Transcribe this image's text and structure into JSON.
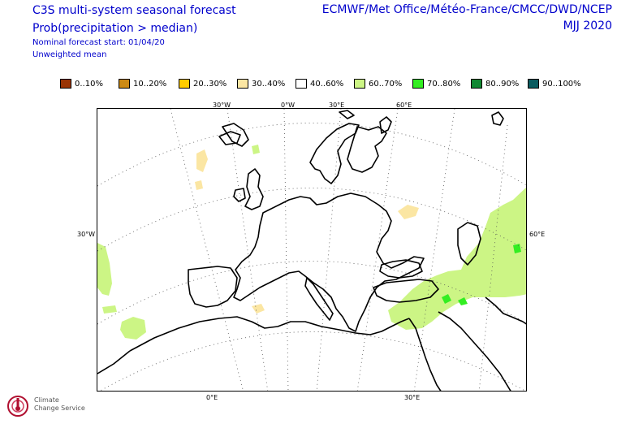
{
  "header": {
    "title": "C3S multi-system seasonal forecast",
    "subtitle": "Prob(precipitation > median)",
    "start": "Nominal forecast start: 01/04/20",
    "mean": "Unweighted mean",
    "centres": "ECMWF/Met Office/Météo-France/CMCC/DWD/NCEP",
    "season": "MJJ 2020"
  },
  "legend": [
    {
      "label": "0..10%",
      "color": "#993404"
    },
    {
      "label": "10..20%",
      "color": "#cc8a14"
    },
    {
      "label": "20..30%",
      "color": "#ffcc00"
    },
    {
      "label": "30..40%",
      "color": "#fbe6a3"
    },
    {
      "label": "40..60%",
      "color": "#ffffff"
    },
    {
      "label": "60..70%",
      "color": "#ccf585"
    },
    {
      "label": "70..80%",
      "color": "#33ee22"
    },
    {
      "label": "80..90%",
      "color": "#118833"
    },
    {
      "label": "90..100%",
      "color": "#0b5c60"
    }
  ],
  "map": {
    "ticks_top": [
      "30°W",
      "0°W",
      "30°E",
      "60°E"
    ],
    "ticks_bottom": [
      "0°E",
      "30°E"
    ],
    "tick_left": "30°W",
    "tick_right": "60°E",
    "land_outline_color": "#000000",
    "graticule_color": "#000000"
  },
  "logo": {
    "icon": "thermometer-spiral-logo",
    "text_line1": "Climate",
    "text_line2": "Change Service"
  }
}
